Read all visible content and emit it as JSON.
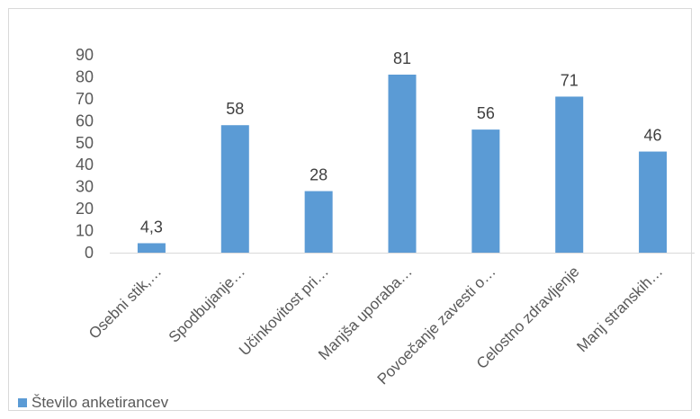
{
  "chart_data": {
    "type": "bar",
    "categories": [
      "Osebni stik,…",
      "Spodbujanje…",
      "Učinkovitost pri…",
      "Manjša uporaba…",
      "Povoečanje zavesti o…",
      "Celostno zdravljenje",
      "Manj stranskih…"
    ],
    "series": [
      {
        "name": "Število anketirancev",
        "values": [
          4.3,
          58,
          28,
          81,
          56,
          71,
          46
        ],
        "labels": [
          "4,3",
          "58",
          "28",
          "81",
          "56",
          "71",
          "46"
        ]
      }
    ],
    "ylim": [
      0,
      90
    ],
    "yticks": [
      0,
      10,
      20,
      30,
      40,
      50,
      60,
      70,
      80,
      90
    ],
    "grid": false,
    "legend_position": "bottom-left",
    "colors": {
      "bar": "#5b9bd5",
      "axis": "#d9d9d9",
      "text": "#595959"
    }
  }
}
